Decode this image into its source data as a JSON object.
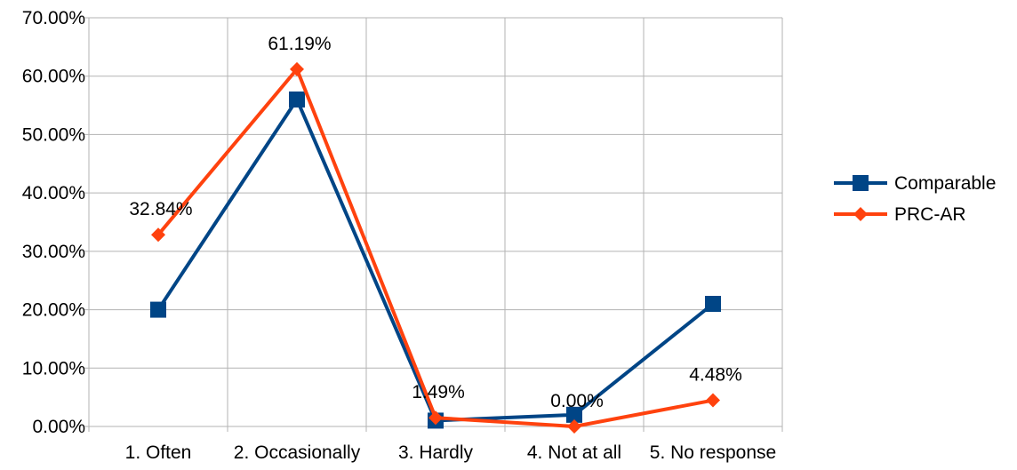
{
  "chart_data": {
    "type": "line",
    "categories": [
      "1. Often",
      "2. Occasionally",
      "3. Hardly",
      "4. Not at all",
      "5. No response"
    ],
    "series": [
      {
        "name": "Comparable",
        "values": [
          20.0,
          56.0,
          1.0,
          2.0,
          21.0
        ],
        "color": "#004586",
        "marker": "square",
        "labels": []
      },
      {
        "name": "PRC-AR",
        "values": [
          32.84,
          61.19,
          1.49,
          0.0,
          4.48
        ],
        "color": "#ff420e",
        "marker": "diamond",
        "labels": [
          "32.84%",
          "61.19%",
          "1.49%",
          "0.00%",
          "4.48%"
        ]
      }
    ],
    "ylim": [
      0,
      70
    ],
    "yticks": [
      "0.00%",
      "10.00%",
      "20.00%",
      "30.00%",
      "40.00%",
      "50.00%",
      "60.00%",
      "70.00%"
    ],
    "grid": true,
    "legend": "right"
  }
}
